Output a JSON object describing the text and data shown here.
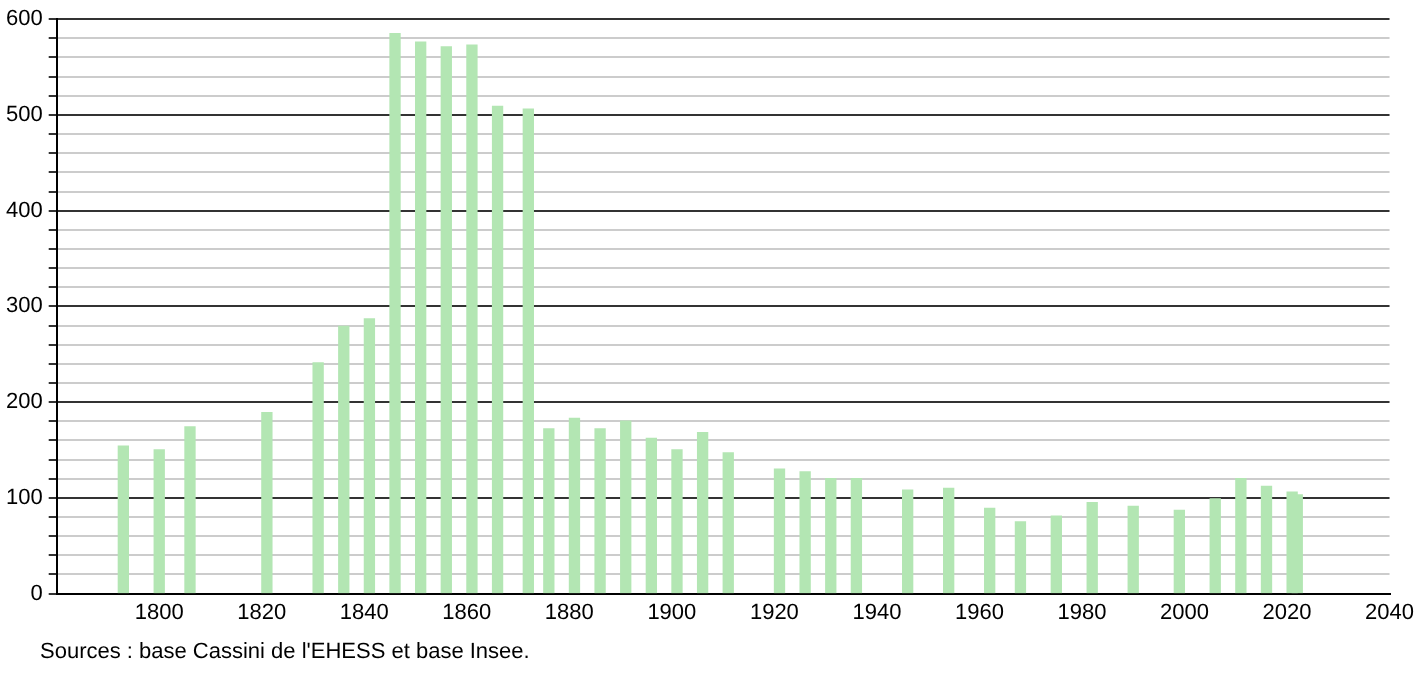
{
  "chart_data": {
    "type": "bar",
    "x": [
      1793,
      1800,
      1806,
      1821,
      1831,
      1836,
      1841,
      1846,
      1851,
      1856,
      1861,
      1866,
      1872,
      1876,
      1881,
      1886,
      1891,
      1896,
      1901,
      1906,
      1911,
      1921,
      1926,
      1931,
      1936,
      1946,
      1954,
      1962,
      1968,
      1975,
      1982,
      1990,
      1999,
      2006,
      2011,
      2016,
      2021,
      2022
    ],
    "values": [
      154,
      150,
      174,
      189,
      241,
      279,
      287,
      585,
      576,
      571,
      573,
      509,
      506,
      172,
      183,
      172,
      180,
      162,
      150,
      168,
      147,
      130,
      127,
      120,
      120,
      108,
      110,
      89,
      75,
      81,
      95,
      91,
      87,
      99,
      120,
      112,
      106,
      103
    ],
    "color": "#b3e6b3",
    "xlim": [
      1780,
      2040
    ],
    "xticks": [
      1800,
      1820,
      1840,
      1860,
      1880,
      1900,
      1920,
      1940,
      1960,
      1980,
      2000,
      2020,
      2040
    ],
    "ylim": [
      0,
      600
    ],
    "yticks": [
      0,
      {
        "value": 20,
        "label": null
      },
      {
        "value": 40,
        "label": null
      },
      {
        "value": 60,
        "label": null
      },
      {
        "value": 80,
        "label": null
      },
      100,
      {
        "value": 120,
        "label": null
      },
      {
        "value": 140,
        "label": null
      },
      {
        "value": 160,
        "label": null
      },
      {
        "value": 180,
        "label": null
      },
      200,
      {
        "value": 220,
        "label": null
      },
      {
        "value": 240,
        "label": null
      },
      {
        "value": 260,
        "label": null
      },
      {
        "value": 280,
        "label": null
      },
      300,
      {
        "value": 320,
        "label": null
      },
      {
        "value": 340,
        "label": null
      },
      {
        "value": 360,
        "label": null
      },
      {
        "value": 380,
        "label": null
      },
      400,
      {
        "value": 420,
        "label": null
      },
      {
        "value": 440,
        "label": null
      },
      {
        "value": 460,
        "label": null
      },
      {
        "value": 480,
        "label": null
      },
      500,
      {
        "value": 520,
        "label": null
      },
      {
        "value": 540,
        "label": null
      },
      {
        "value": 560,
        "label": null
      },
      {
        "value": 580,
        "label": null
      },
      600
    ],
    "grid": "y",
    "legend": false,
    "annotations": [
      "Sources : base Cassini de l'EHESS et base Insee."
    ]
  }
}
